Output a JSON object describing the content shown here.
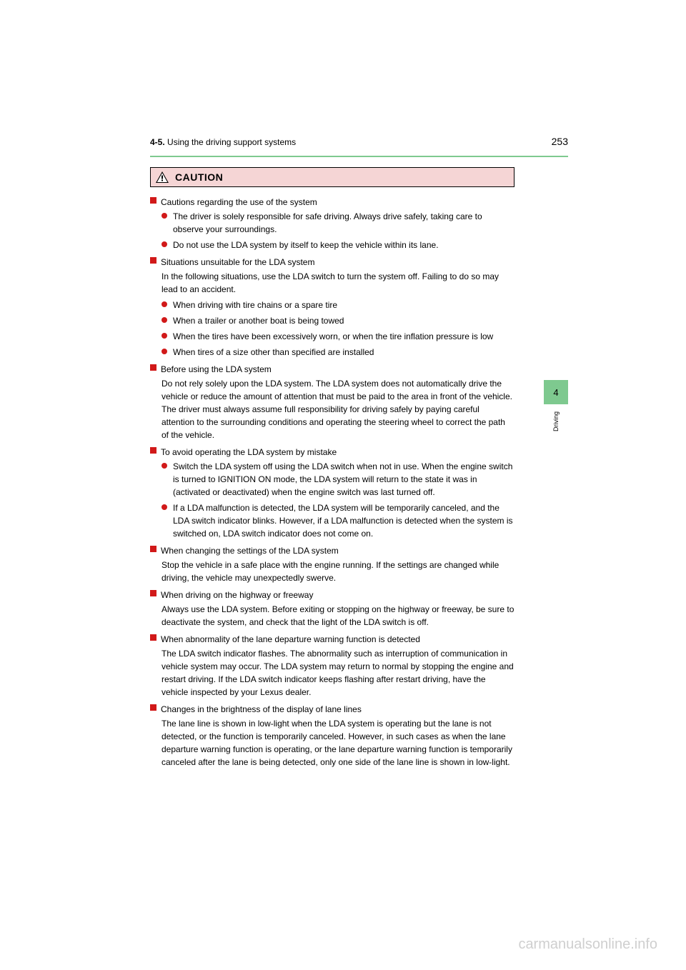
{
  "header": {
    "section_num": "4-5.",
    "section_title": "Using the driving support systems",
    "page_num": "253"
  },
  "caution": {
    "label": "CAUTION"
  },
  "side_tab": {
    "num": "4",
    "label": "Driving"
  },
  "sections": [
    {
      "title": "Cautions regarding the use of the system",
      "intro": "",
      "bullets": [
        "The driver is solely responsible for safe driving. Always drive safely, taking care to observe your surroundings.",
        "Do not use the LDA system by itself to keep the vehicle within its lane."
      ]
    },
    {
      "title": "Situations unsuitable for the LDA system",
      "intro": "In the following situations, use the LDA switch to turn the system off. Failing to do so may lead to an accident.",
      "bullets": [
        "When driving with tire chains or a spare tire",
        "When a trailer or another boat is being towed",
        "When the tires have been excessively worn, or when the tire inflation pressure is low",
        "When tires of a size other than specified are installed"
      ]
    },
    {
      "title": "Before using the LDA system",
      "intro": "Do not rely solely upon the LDA system. The LDA system does not automatically drive the vehicle or reduce the amount of attention that must be paid to the area in front of the vehicle. The driver must always assume full responsibility for driving safely by paying careful attention to the surrounding conditions and operating the steering wheel to correct the path of the vehicle.",
      "bullets": []
    },
    {
      "title": "To avoid operating the LDA system by mistake",
      "intro": "",
      "bullets": [
        "Switch the LDA system off using the LDA switch when not in use. When the engine switch is turned to IGNITION ON mode, the LDA system will return to the state it was in (activated or deactivated) when the engine switch was last turned off.",
        "If a LDA malfunction is detected, the LDA system will be temporarily canceled, and the LDA switch indicator blinks. However, if a LDA malfunction is detected when the system is switched on, LDA switch indicator does not come on."
      ]
    },
    {
      "title": "When changing the settings of the LDA system",
      "intro": "Stop the vehicle in a safe place with the engine running. If the settings are changed while driving, the vehicle may unexpectedly swerve.",
      "bullets": []
    },
    {
      "title": "When driving on the highway or freeway",
      "intro": "Always use the LDA system. Before exiting or stopping on the highway or freeway, be sure to deactivate the system, and check that the light of the LDA switch is off.",
      "bullets": []
    },
    {
      "title": "When abnormality of the lane departure warning function is detected",
      "intro": "The LDA switch indicator flashes. The abnormality such as interruption of communication in vehicle system may occur. The LDA system may return to normal by stopping the engine and restart driving. If the LDA switch indicator keeps flashing after restart driving, have the vehicle inspected by your Lexus dealer.",
      "bullets": []
    },
    {
      "title": "Changes in the brightness of the display of lane lines",
      "intro": "The lane line is shown in low-light when the LDA system is operating but the lane is not detected, or the function is temporarily canceled. However, in such cases as when the lane departure warning function is operating, or the lane departure warning function is temporarily canceled after the lane is being detected, only one side of the lane line is shown in low-light.",
      "bullets": []
    }
  ],
  "watermark": "carmanualsonline.info",
  "colors": {
    "accent_green": "#7ec98f",
    "accent_red": "#d11919",
    "caution_bg": "#f5d5d5",
    "watermark_gray": "#cfcfcf"
  }
}
